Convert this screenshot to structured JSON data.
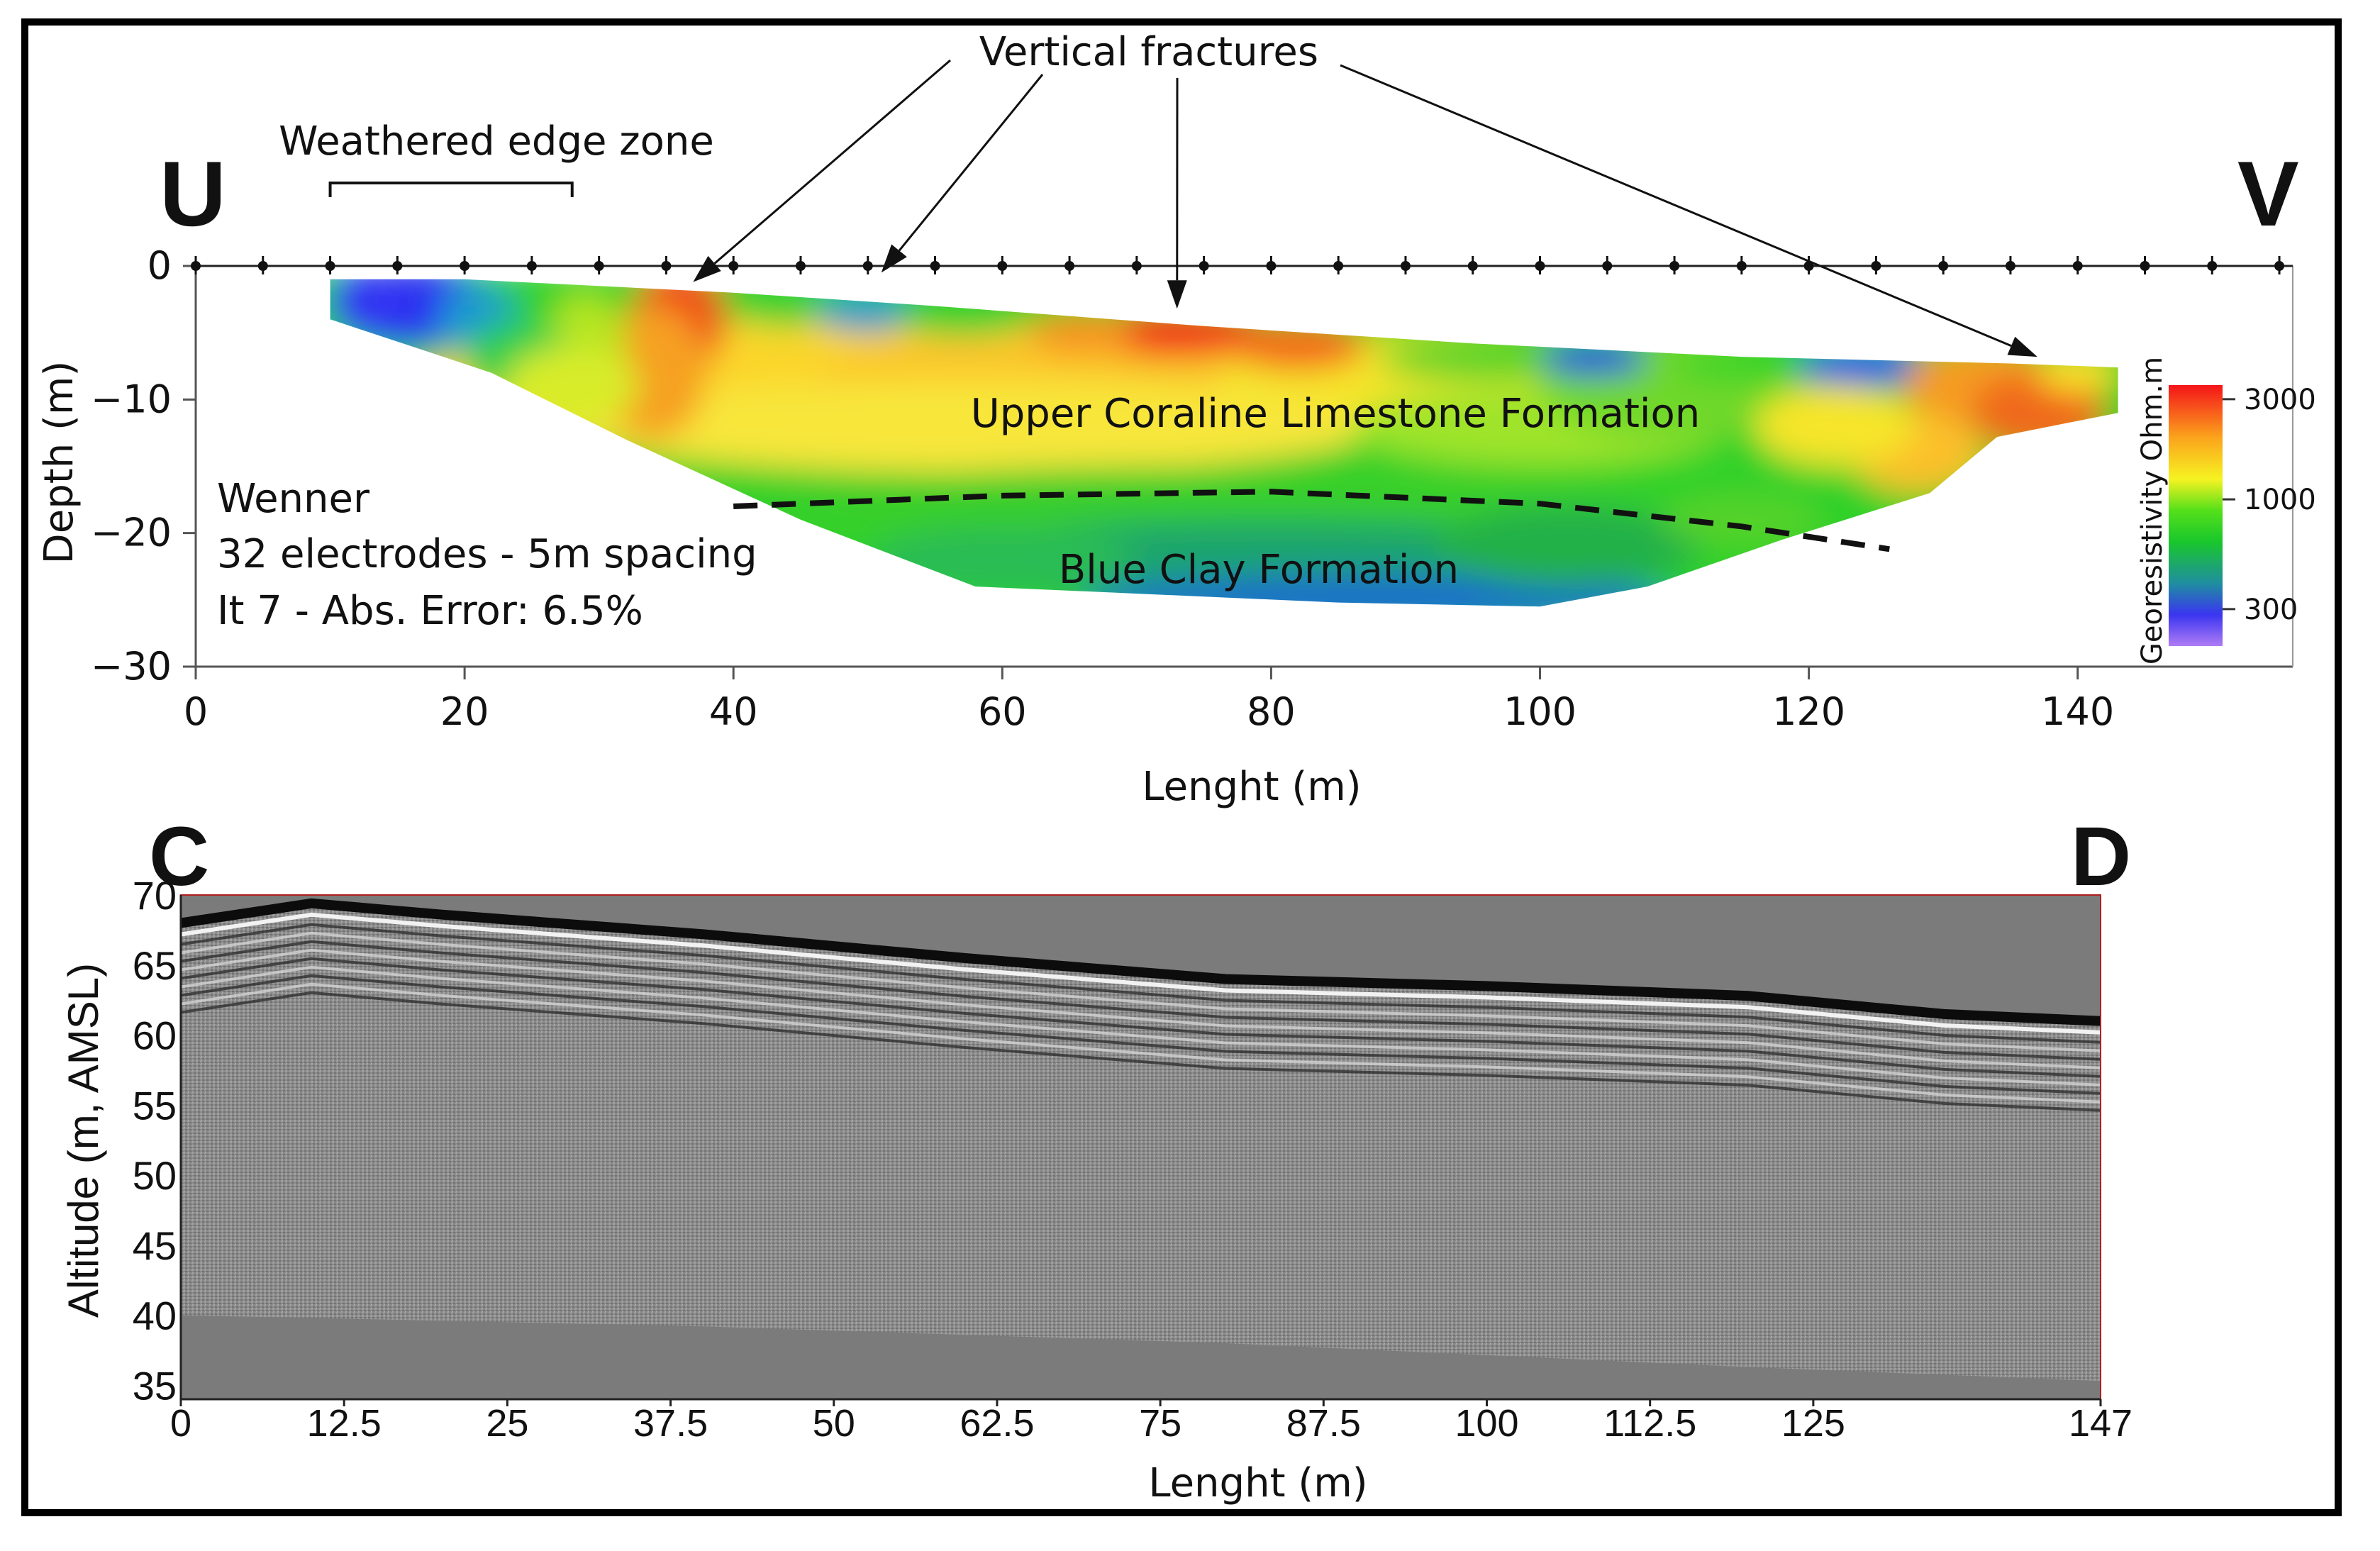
{
  "chart_data": [
    {
      "type": "heatmap",
      "section_start_label": "U",
      "section_end_label": "V",
      "xlabel": "Lenght (m)",
      "ylabel": "Depth (m)",
      "xlim": [
        0,
        156
      ],
      "ylim": [
        -30,
        0
      ],
      "x_ticks": [
        0,
        20,
        40,
        60,
        80,
        100,
        120,
        140
      ],
      "y_ticks": [
        0,
        -10,
        -20,
        -30
      ],
      "x_tick_labels": [
        "0",
        "20",
        "40",
        "60",
        "80",
        "100",
        "120",
        "140"
      ],
      "y_tick_labels": [
        "0",
        "−10",
        "−20",
        "−30"
      ],
      "electrode_spacing_m": 5,
      "electrode_count": 32,
      "electrodes_x": [
        0,
        5,
        10,
        15,
        20,
        25,
        30,
        35,
        40,
        45,
        50,
        55,
        60,
        65,
        70,
        75,
        80,
        85,
        90,
        95,
        100,
        105,
        110,
        115,
        120,
        125,
        130,
        135,
        140,
        145,
        150,
        155
      ],
      "colorbar": {
        "title": "Georesistivity Ohm.m",
        "tick_labels": [
          "3000",
          "1000",
          "300"
        ],
        "ticks": [
          3000,
          1000,
          300
        ],
        "range": [
          200,
          3500
        ]
      },
      "annotations": {
        "fractures_label": "Vertical fractures",
        "fractures_x": [
          37,
          51,
          73,
          137
        ],
        "weathered_label": "Weathered edge zone",
        "weathered_range": [
          10,
          28
        ],
        "upper_formation": "Upper Coraline Limestone Formation",
        "lower_formation": "Blue Clay Formation",
        "boundary_line": [
          [
            40,
            -18
          ],
          [
            60,
            -17.2
          ],
          [
            80,
            -16.9
          ],
          [
            100,
            -17.8
          ],
          [
            115,
            -19.5
          ],
          [
            126,
            -21.2
          ]
        ],
        "info_lines": [
          "Wenner",
          "32 electrodes - 5m spacing",
          "It 7 - Abs. Error: 6.5%"
        ]
      },
      "model_outline": [
        [
          10,
          -1
        ],
        [
          20,
          -1
        ],
        [
          30,
          -1.5
        ],
        [
          40,
          -2
        ],
        [
          55,
          -3
        ],
        [
          75,
          -4.5
        ],
        [
          95,
          -5.8
        ],
        [
          115,
          -6.8
        ],
        [
          135,
          -7.3
        ],
        [
          143,
          -7.6
        ],
        [
          143,
          -11
        ],
        [
          134,
          -12.8
        ],
        [
          129,
          -17
        ],
        [
          118,
          -20.5
        ],
        [
          108,
          -24
        ],
        [
          100,
          -25.5
        ],
        [
          85,
          -25.2
        ],
        [
          58,
          -24
        ],
        [
          45,
          -19
        ],
        [
          32,
          -13
        ],
        [
          27,
          -10.5
        ],
        [
          22,
          -8
        ],
        [
          10,
          -4
        ]
      ]
    },
    {
      "type": "heatmap",
      "section_start_label": "C",
      "section_end_label": "D",
      "xlabel": "Lenght (m)",
      "ylabel": "Altitude (m, AMSL)",
      "xlim": [
        0,
        147
      ],
      "ylim": [
        34,
        70
      ],
      "x_ticks": [
        0,
        12.5,
        25,
        37.5,
        50,
        62.5,
        75,
        87.5,
        100,
        112.5,
        125,
        147
      ],
      "x_tick_labels": [
        "0",
        "12.5",
        "25",
        "37.5",
        "50",
        "62.5",
        "75",
        "87.5",
        "100",
        "112.5",
        "125",
        "147"
      ],
      "y_ticks": [
        70,
        65,
        60,
        55,
        50,
        45,
        40,
        35
      ],
      "y_tick_labels": [
        "70",
        "65",
        "60",
        "55",
        "50",
        "45",
        "40",
        "35"
      ],
      "surface_profile": [
        [
          0,
          68
        ],
        [
          10,
          69.4
        ],
        [
          20,
          68.6
        ],
        [
          40,
          67.2
        ],
        [
          60,
          65.5
        ],
        [
          80,
          64
        ],
        [
          100,
          63.5
        ],
        [
          120,
          62.8
        ],
        [
          135,
          61.5
        ],
        [
          147,
          61
        ]
      ],
      "signal_bottom_profile": [
        [
          0,
          40
        ],
        [
          40,
          39.2
        ],
        [
          80,
          38
        ],
        [
          120,
          36.3
        ],
        [
          147,
          35.3
        ]
      ]
    }
  ]
}
